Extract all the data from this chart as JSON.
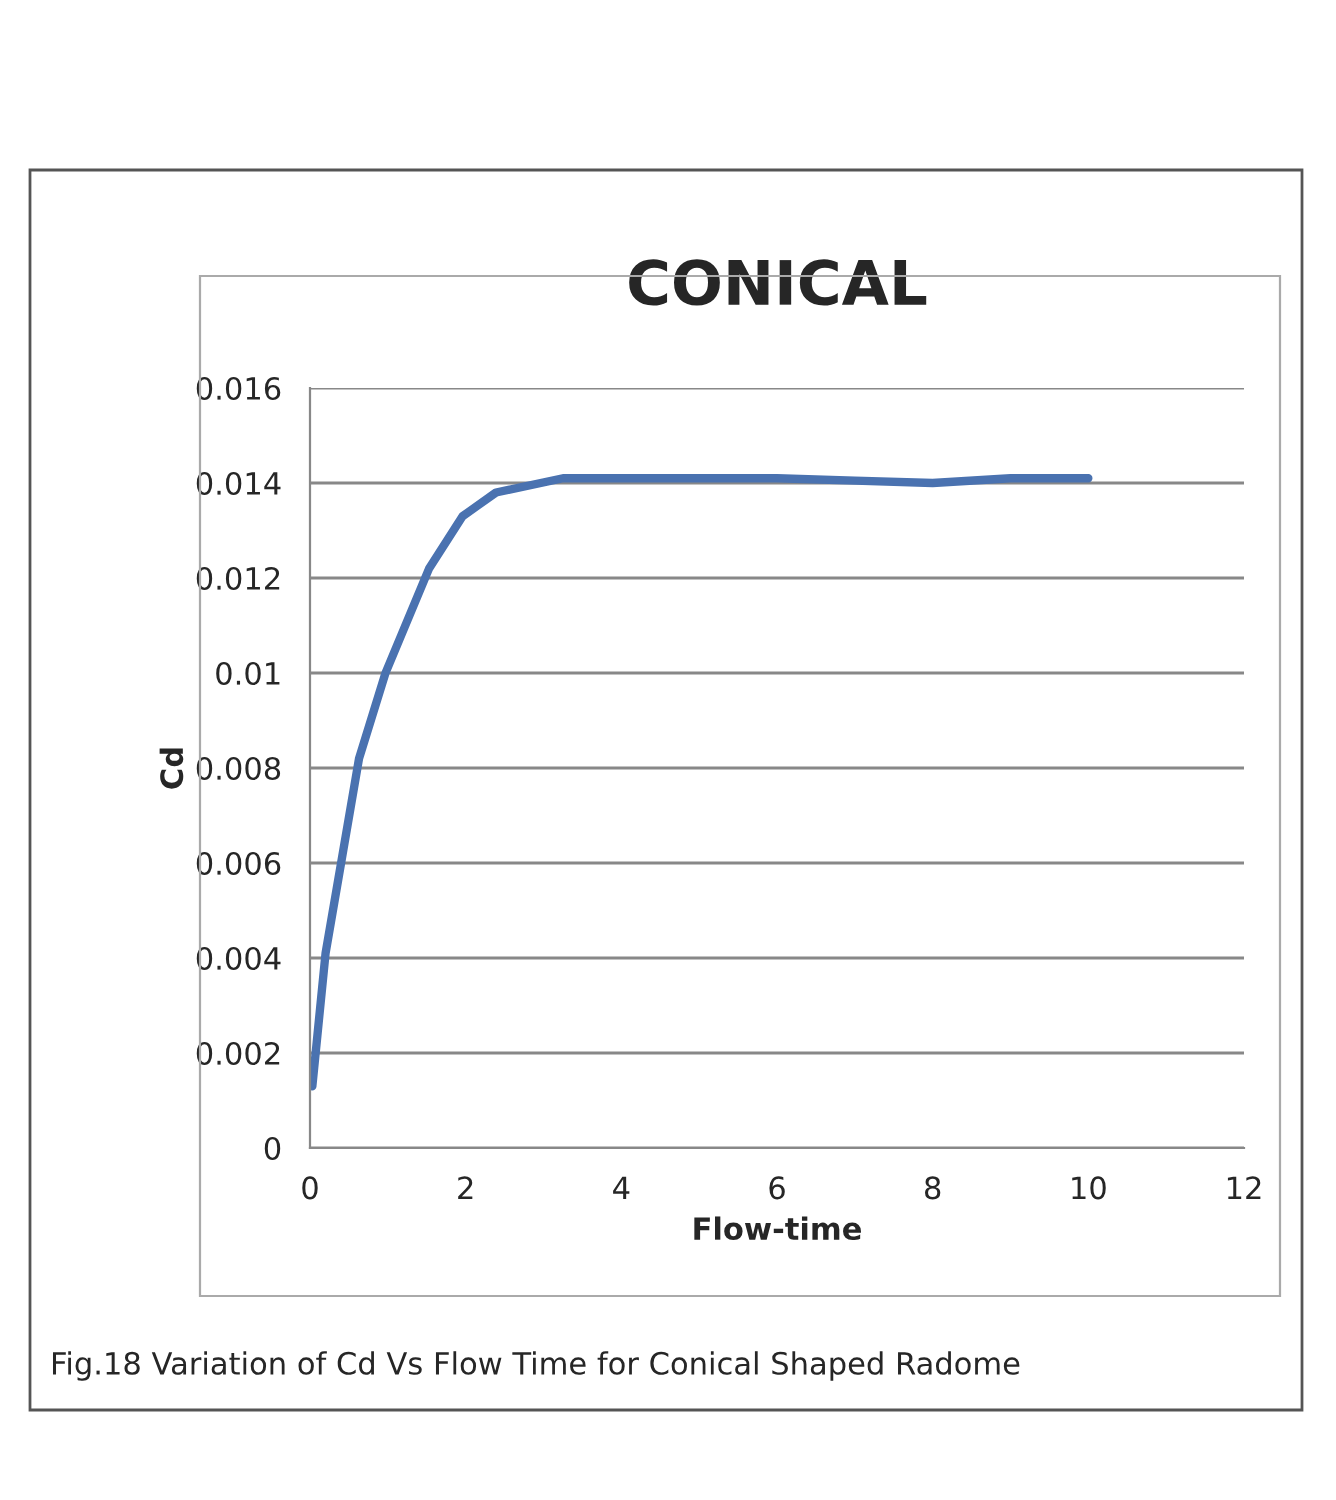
{
  "chart_data": {
    "type": "line",
    "title": "CONICAL",
    "xlabel": "Flow-time",
    "ylabel": "Cd",
    "annotations": [
      "Fig.18 Variation of Cd Vs Flow Time for Conical Shaped Radome"
    ],
    "series": [
      {
        "color": "#4a72b0",
        "x": [
          0.03,
          0.2,
          0.41,
          0.63,
          0.97,
          1.53,
          1.96,
          2.39,
          3.25,
          4.0,
          5.0,
          6.0,
          7.0,
          8.0,
          9.0,
          10.0
        ],
        "values": [
          0.0013,
          0.0041,
          0.0061,
          0.0082,
          0.01,
          0.0122,
          0.0133,
          0.0138,
          0.0141,
          0.0141,
          0.0141,
          0.0141,
          0.01405,
          0.014,
          0.0141,
          0.0141
        ]
      }
    ],
    "xlim": [
      0,
      12
    ],
    "xticks": [
      0,
      2,
      4,
      6,
      8,
      10,
      12
    ],
    "ylim": [
      0,
      0.016
    ],
    "yticks": [
      0,
      0.002,
      0.004,
      0.006,
      0.008,
      0.01,
      0.012,
      0.014,
      0.016
    ],
    "grid": "y",
    "line_style": "solid"
  }
}
